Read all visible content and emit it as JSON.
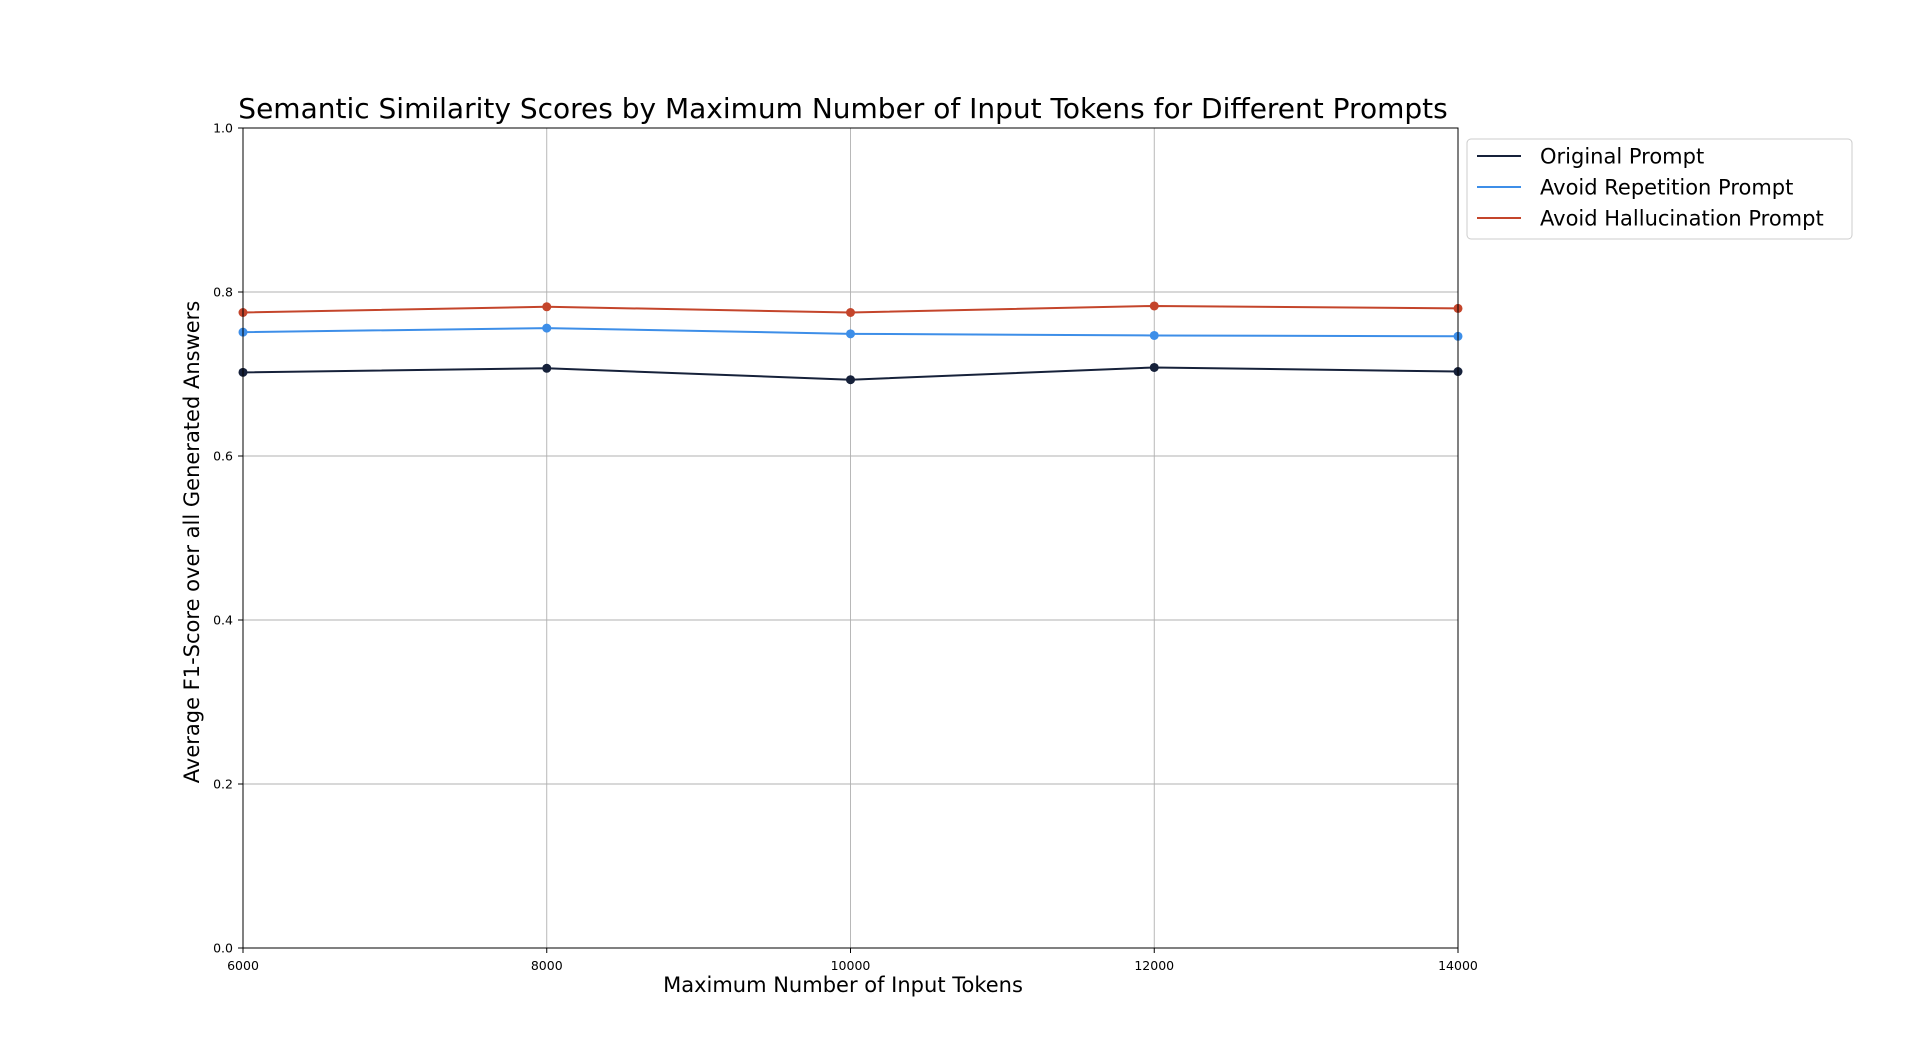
{
  "chart_data": {
    "type": "line",
    "title": "Semantic Similarity Scores by Maximum Number of Input Tokens for Different Prompts",
    "xlabel": "Maximum Number of Input Tokens",
    "ylabel": "Average F1-Score over all Generated Answers",
    "x": [
      6000,
      8000,
      10000,
      12000,
      14000
    ],
    "xlim": [
      6000,
      14000
    ],
    "ylim": [
      0.0,
      1.0
    ],
    "xticks": [
      "6000",
      "8000",
      "10000",
      "12000",
      "14000"
    ],
    "yticks": [
      "0.0",
      "0.2",
      "0.4",
      "0.6",
      "0.8",
      "1.0"
    ],
    "xtick_values": [
      6000,
      8000,
      10000,
      12000,
      14000
    ],
    "ytick_values": [
      0.0,
      0.2,
      0.4,
      0.6,
      0.8,
      1.0
    ],
    "grid": true,
    "legend_position": "outside-top-right",
    "series": [
      {
        "name": "Original Prompt",
        "color": "#16213a",
        "values": [
          0.702,
          0.707,
          0.693,
          0.708,
          0.703
        ]
      },
      {
        "name": "Avoid Repetition Prompt",
        "color": "#3d8ee8",
        "values": [
          0.751,
          0.756,
          0.749,
          0.747,
          0.746
        ]
      },
      {
        "name": "Avoid Hallucination Prompt",
        "color": "#c4452b",
        "values": [
          0.775,
          0.782,
          0.775,
          0.783,
          0.78
        ]
      }
    ]
  }
}
